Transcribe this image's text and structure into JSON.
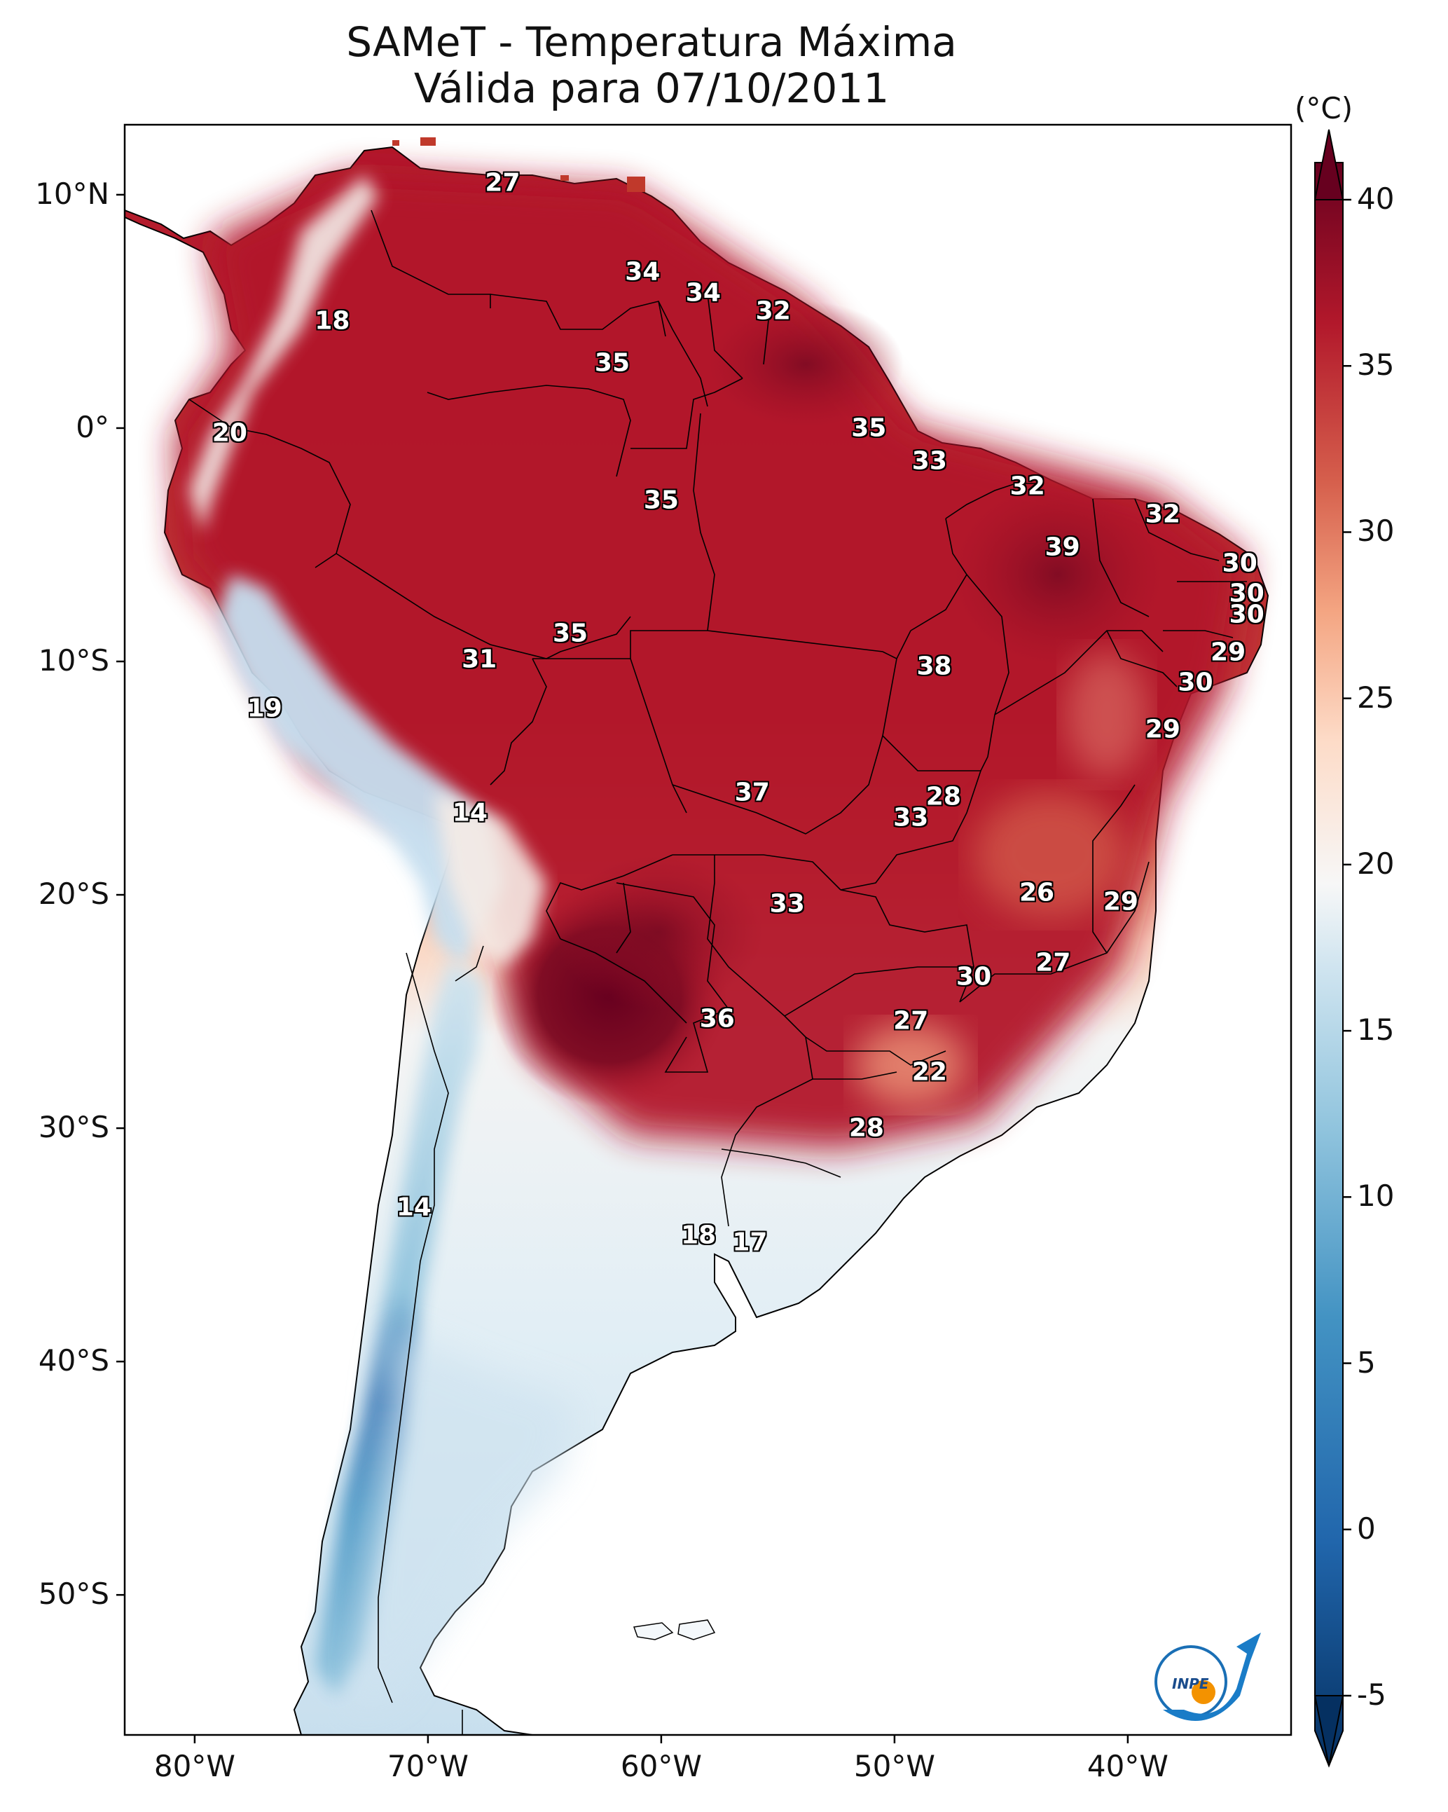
{
  "title": {
    "line1": "SAMeT - Temperatura Máxima",
    "line2": "Válida para 07/10/2011"
  },
  "colorbar": {
    "unit": "(°C)",
    "ticks": [
      "40",
      "35",
      "30",
      "25",
      "20",
      "15",
      "10",
      "5",
      "0",
      "-5"
    ],
    "tick_values": [
      40,
      35,
      30,
      25,
      20,
      15,
      10,
      5,
      0,
      -5
    ],
    "range": [
      -5,
      40
    ],
    "colors": {
      "hot": "#67001f",
      "warm": "#b2182b",
      "mild": "#d6604d",
      "light_warm": "#f4a582",
      "neutral": "#f7f7f7",
      "light_cool": "#92c5de",
      "cool": "#4393c3",
      "cold": "#053061"
    }
  },
  "axes": {
    "lon_labels": [
      "80°W",
      "70°W",
      "60°W",
      "50°W",
      "40°W"
    ],
    "lon_values": [
      -80,
      -70,
      -60,
      -50,
      -40
    ],
    "lat_labels": [
      "10°N",
      "0°",
      "10°S",
      "20°S",
      "30°S",
      "40°S",
      "50°S"
    ],
    "lat_values": [
      10,
      0,
      -10,
      -20,
      -30,
      -40,
      -50
    ],
    "lon_range": [
      -83,
      -33
    ],
    "lat_range": [
      -56,
      13
    ]
  },
  "logo": {
    "text": "INPE"
  },
  "chart_data": {
    "type": "heatmap",
    "title": "SAMeT - Temperatura Máxima Válida para 07/10/2011",
    "variable": "Maximum temperature",
    "unit": "°C",
    "date": "07/10/2011",
    "vmin": -5,
    "vmax": 40,
    "stations": [
      {
        "label": "27",
        "value": 27,
        "lon": -66.8,
        "lat": 10.5
      },
      {
        "label": "34",
        "value": 34,
        "lon": -60.8,
        "lat": 6.7
      },
      {
        "label": "34",
        "value": 34,
        "lon": -58.2,
        "lat": 5.8
      },
      {
        "label": "32",
        "value": 32,
        "lon": -55.2,
        "lat": 5.0
      },
      {
        "label": "18",
        "value": 18,
        "lon": -74.1,
        "lat": 4.6
      },
      {
        "label": "35",
        "value": 35,
        "lon": -62.1,
        "lat": 2.8
      },
      {
        "label": "20",
        "value": 20,
        "lon": -78.5,
        "lat": -0.2
      },
      {
        "label": "35",
        "value": 35,
        "lon": -51.1,
        "lat": 0.0
      },
      {
        "label": "33",
        "value": 33,
        "lon": -48.5,
        "lat": -1.4
      },
      {
        "label": "35",
        "value": 35,
        "lon": -60.0,
        "lat": -3.1
      },
      {
        "label": "32",
        "value": 32,
        "lon": -44.3,
        "lat": -2.5
      },
      {
        "label": "32",
        "value": 32,
        "lon": -38.5,
        "lat": -3.7
      },
      {
        "label": "39",
        "value": 39,
        "lon": -42.8,
        "lat": -5.1
      },
      {
        "label": "30",
        "value": 30,
        "lon": -35.2,
        "lat": -5.8
      },
      {
        "label": "30",
        "value": 30,
        "lon": -34.9,
        "lat": -7.1
      },
      {
        "label": "30",
        "value": 30,
        "lon": -34.9,
        "lat": -8.0
      },
      {
        "label": "35",
        "value": 35,
        "lon": -63.9,
        "lat": -8.8
      },
      {
        "label": "31",
        "value": 31,
        "lon": -67.8,
        "lat": -9.9
      },
      {
        "label": "29",
        "value": 29,
        "lon": -35.7,
        "lat": -9.6
      },
      {
        "label": "38",
        "value": 38,
        "lon": -48.3,
        "lat": -10.2
      },
      {
        "label": "30",
        "value": 30,
        "lon": -37.1,
        "lat": -10.9
      },
      {
        "label": "19",
        "value": 19,
        "lon": -77.0,
        "lat": -12.0
      },
      {
        "label": "29",
        "value": 29,
        "lon": -38.5,
        "lat": -12.9
      },
      {
        "label": "37",
        "value": 37,
        "lon": -56.1,
        "lat": -15.6
      },
      {
        "label": "28",
        "value": 28,
        "lon": -47.9,
        "lat": -15.8
      },
      {
        "label": "33",
        "value": 33,
        "lon": -49.3,
        "lat": -16.7
      },
      {
        "label": "14",
        "value": 14,
        "lon": -68.2,
        "lat": -16.5
      },
      {
        "label": "26",
        "value": 26,
        "lon": -43.9,
        "lat": -19.9
      },
      {
        "label": "29",
        "value": 29,
        "lon": -40.3,
        "lat": -20.3
      },
      {
        "label": "33",
        "value": 33,
        "lon": -54.6,
        "lat": -20.4
      },
      {
        "label": "27",
        "value": 27,
        "lon": -43.2,
        "lat": -22.9
      },
      {
        "label": "30",
        "value": 30,
        "lon": -46.6,
        "lat": -23.5
      },
      {
        "label": "36",
        "value": 36,
        "lon": -57.6,
        "lat": -25.3
      },
      {
        "label": "27",
        "value": 27,
        "lon": -49.3,
        "lat": -25.4
      },
      {
        "label": "22",
        "value": 22,
        "lon": -48.5,
        "lat": -27.6
      },
      {
        "label": "28",
        "value": 28,
        "lon": -51.2,
        "lat": -30.0
      },
      {
        "label": "14",
        "value": 14,
        "lon": -70.6,
        "lat": -33.4
      },
      {
        "label": "18",
        "value": 18,
        "lon": -58.4,
        "lat": -34.6
      },
      {
        "label": "17",
        "value": 17,
        "lon": -56.2,
        "lat": -34.9
      }
    ]
  }
}
